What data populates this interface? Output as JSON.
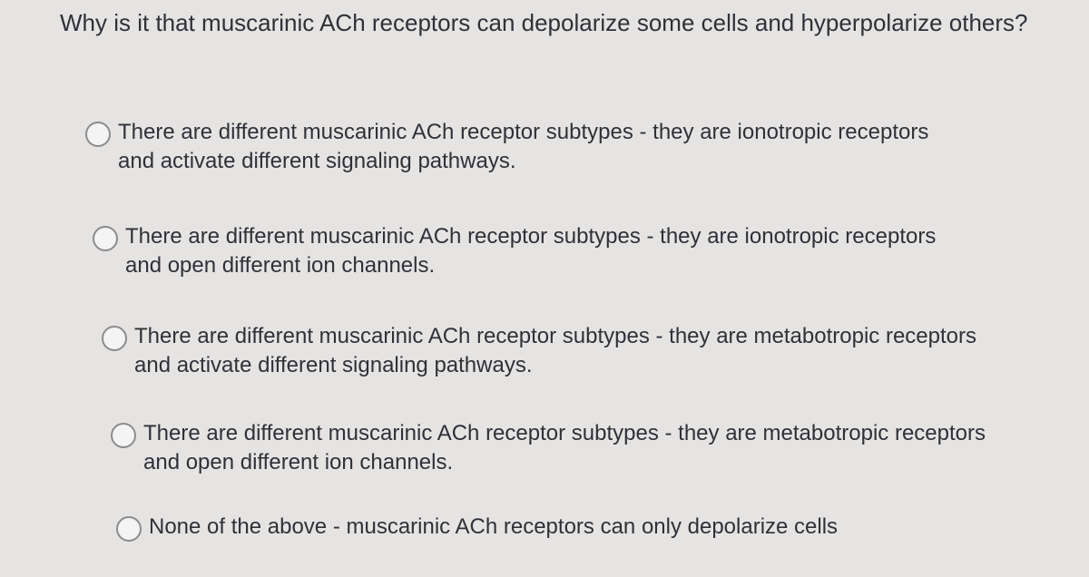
{
  "question": "Why is it that muscarinic ACh receptors can depolarize some cells and hyperpolarize others?",
  "options": [
    "There are different muscarinic ACh receptor subtypes - they are ionotropic receptors and activate different signaling pathways.",
    "There are different muscarinic ACh receptor subtypes - they are ionotropic receptors and open different ion channels.",
    "There are different muscarinic ACh receptor subtypes - they are metabotropic receptors and activate different signaling pathways.",
    "There are different muscarinic ACh receptor subtypes - they are metabotropic receptors and open different ion channels.",
    "None of the above - muscarinic ACh receptors can only depolarize cells"
  ]
}
